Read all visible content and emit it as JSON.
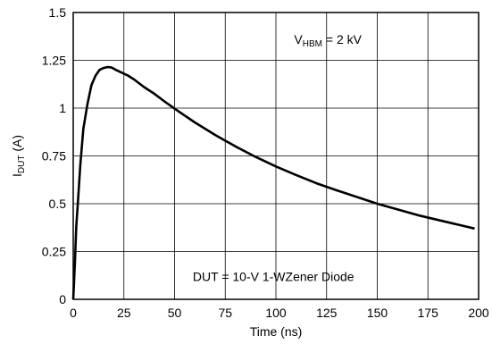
{
  "chart_data": {
    "type": "line",
    "title": "",
    "xlabel": "Time (ns)",
    "ylabel": {
      "main": "I",
      "sub": "DUT",
      "suffix": " (A)"
    },
    "xlim": [
      0,
      200
    ],
    "ylim": [
      0,
      1.5
    ],
    "x_ticks": [
      "0",
      "25",
      "50",
      "75",
      "100",
      "125",
      "150",
      "175",
      "200"
    ],
    "y_ticks": [
      "0",
      "0.25",
      "0.5",
      "0.75",
      "1",
      "1.25",
      "1.5"
    ],
    "grid": true,
    "annotations": [
      {
        "main": "V",
        "sub": "HBM",
        "suffix": " = 2 kV"
      },
      {
        "text": "DUT = 10-V 1-WZener Diode"
      }
    ],
    "series": [
      {
        "x": [
          0,
          0.8,
          1.5,
          2.5,
          3.5,
          5,
          7,
          9,
          11,
          13,
          15,
          17,
          19,
          21,
          23,
          25,
          27,
          30,
          35,
          40,
          45,
          50,
          60,
          70,
          80,
          90,
          100,
          110,
          120,
          130,
          140,
          150,
          160,
          170,
          180,
          190,
          198
        ],
        "y": [
          0,
          0.18,
          0.38,
          0.54,
          0.7,
          0.89,
          1.02,
          1.12,
          1.17,
          1.2,
          1.21,
          1.215,
          1.212,
          1.2,
          1.19,
          1.18,
          1.17,
          1.15,
          1.11,
          1.075,
          1.035,
          0.997,
          0.925,
          0.86,
          0.8,
          0.745,
          0.695,
          0.65,
          0.607,
          0.57,
          0.535,
          0.5,
          0.47,
          0.44,
          0.415,
          0.39,
          0.37
        ]
      }
    ]
  }
}
